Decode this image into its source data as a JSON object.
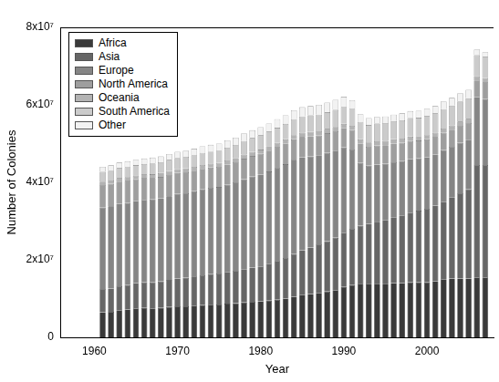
{
  "chart_data": {
    "type": "bar",
    "stacked": true,
    "x_label": "Year",
    "y_label": "Number of Colonies",
    "x": [
      1961,
      1962,
      1963,
      1964,
      1965,
      1966,
      1967,
      1968,
      1969,
      1970,
      1971,
      1972,
      1973,
      1974,
      1975,
      1976,
      1977,
      1978,
      1979,
      1980,
      1981,
      1982,
      1983,
      1984,
      1985,
      1986,
      1987,
      1988,
      1989,
      1990,
      1991,
      1992,
      1993,
      1994,
      1995,
      1996,
      1997,
      1998,
      1999,
      2000,
      2001,
      2002,
      2003,
      2004,
      2005,
      2006,
      2007
    ],
    "xlim": [
      1956,
      2008
    ],
    "xticks": [
      1960,
      1970,
      1980,
      1990,
      2000
    ],
    "ylim": [
      0,
      80000000
    ],
    "yticks": [
      0,
      {
        "value": 20000000,
        "label": "2x10⁷"
      },
      {
        "value": 40000000,
        "label": "4x10⁷"
      },
      {
        "value": 60000000,
        "label": "6x10⁷"
      },
      {
        "value": 80000000,
        "label": "8x10⁷"
      }
    ],
    "grid": false,
    "legend": "top-left",
    "series": [
      {
        "name": "Africa",
        "color": "#3a3a3a",
        "values": [
          6500000,
          6600000,
          7000000,
          7200000,
          7500000,
          7600000,
          7500000,
          7600000,
          7800000,
          8000000,
          8000000,
          8200000,
          8300000,
          8400000,
          8500000,
          8700000,
          8800000,
          9000000,
          9200000,
          9300000,
          9500000,
          9700000,
          10000000,
          10500000,
          11000000,
          11200000,
          11500000,
          11800000,
          12200000,
          13000000,
          13500000,
          13800000,
          13800000,
          13800000,
          13800000,
          14000000,
          14000000,
          14200000,
          14200000,
          14200000,
          14500000,
          15000000,
          15200000,
          15200000,
          15200000,
          15500000,
          15500000
        ]
      },
      {
        "name": "Asia",
        "color": "#666666",
        "values": [
          6000000,
          6000000,
          6200000,
          6300000,
          6500000,
          6600000,
          6700000,
          6800000,
          7000000,
          7200000,
          7400000,
          7500000,
          7700000,
          7900000,
          8000000,
          8200000,
          8400000,
          8600000,
          8800000,
          9000000,
          9500000,
          10000000,
          10500000,
          11000000,
          11500000,
          12000000,
          12500000,
          13000000,
          13500000,
          14000000,
          14500000,
          15000000,
          15500000,
          16000000,
          16500000,
          17000000,
          17500000,
          18000000,
          18500000,
          19000000,
          19500000,
          20000000,
          21000000,
          22000000,
          23000000,
          29000000,
          29000000
        ]
      },
      {
        "name": "Europe",
        "color": "#858585",
        "values": [
          21000000,
          21200000,
          21300000,
          21200000,
          21200000,
          21300000,
          21400000,
          21500000,
          21600000,
          21800000,
          21800000,
          22000000,
          22200000,
          22300000,
          22300000,
          22500000,
          22800000,
          23200000,
          23500000,
          23700000,
          23800000,
          24000000,
          24200000,
          24300000,
          24000000,
          23500000,
          23000000,
          22800000,
          22500000,
          22000000,
          20500000,
          16200000,
          15000000,
          14800000,
          14500000,
          14200000,
          14000000,
          13800000,
          13500000,
          13300000,
          13200000,
          13300000,
          13000000,
          13000000,
          12800000,
          17500000,
          17000000
        ]
      },
      {
        "name": "North America",
        "color": "#9e9e9e",
        "values": [
          5800000,
          5800000,
          5700000,
          5700000,
          5600000,
          5600000,
          5500000,
          5500000,
          5500000,
          5400000,
          5400000,
          5300000,
          5300000,
          5200000,
          5200000,
          5200000,
          5200000,
          5300000,
          5300000,
          5400000,
          5400000,
          5400000,
          5300000,
          5300000,
          5200000,
          5200000,
          5100000,
          5100000,
          5000000,
          5000000,
          5000000,
          5000000,
          4900000,
          4900000,
          4800000,
          4800000,
          4700000,
          4700000,
          4600000,
          4600000,
          4500000,
          4500000,
          4400000,
          4400000,
          4300000,
          4300000,
          4300000
        ]
      },
      {
        "name": "Oceania",
        "color": "#b3b3b3",
        "values": [
          900000,
          900000,
          900000,
          950000,
          950000,
          950000,
          1000000,
          1000000,
          1000000,
          1000000,
          1000000,
          1000000,
          1000000,
          1000000,
          1000000,
          1050000,
          1050000,
          1050000,
          1050000,
          1050000,
          1100000,
          1100000,
          1100000,
          1100000,
          1100000,
          1100000,
          1100000,
          1100000,
          1100000,
          1100000,
          1100000,
          1100000,
          1100000,
          1100000,
          1100000,
          1100000,
          1100000,
          1100000,
          1100000,
          1100000,
          1100000,
          1100000,
          1100000,
          1100000,
          1100000,
          1100000,
          1100000
        ]
      },
      {
        "name": "South America",
        "color": "#cbcbcb",
        "values": [
          2500000,
          2500000,
          2600000,
          2600000,
          2700000,
          2700000,
          2800000,
          2800000,
          2900000,
          2900000,
          3000000,
          3000000,
          3100000,
          3100000,
          3200000,
          3300000,
          3400000,
          3500000,
          3600000,
          3700000,
          3800000,
          3900000,
          4000000,
          4100000,
          4200000,
          4300000,
          4300000,
          4300000,
          4400000,
          4400000,
          4400000,
          4500000,
          4500000,
          4600000,
          4600000,
          4700000,
          4700000,
          4800000,
          4800000,
          4900000,
          5000000,
          5000000,
          5100000,
          5200000,
          5300000,
          5400000,
          5500000
        ]
      },
      {
        "name": "Other",
        "color": "#f2f2f2",
        "values": [
          1300000,
          1400000,
          1400000,
          1500000,
          1400000,
          1400000,
          1500000,
          1500000,
          1500000,
          1600000,
          1600000,
          1700000,
          1700000,
          1800000,
          1800000,
          1900000,
          1900000,
          2000000,
          2000000,
          2100000,
          2100000,
          2200000,
          2200000,
          2300000,
          2400000,
          2400000,
          2500000,
          2500000,
          2600000,
          2600000,
          2200000,
          2000000,
          1800000,
          1700000,
          1700000,
          1700000,
          1800000,
          1800000,
          1800000,
          1900000,
          1900000,
          2000000,
          2000000,
          2100000,
          2200000,
          1500000,
          1200000
        ]
      }
    ]
  }
}
